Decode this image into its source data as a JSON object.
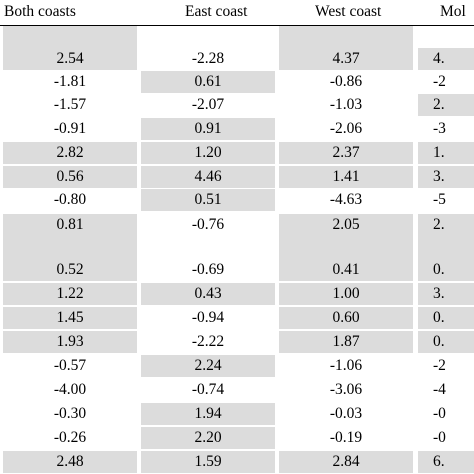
{
  "columns": [
    "Both coasts",
    "East coast",
    "West coast",
    "Mol"
  ],
  "colors": {
    "shade": "#dcdcdc",
    "text": "#000000"
  },
  "rows": [
    {
      "values": [
        "2.54",
        "-2.28",
        "4.37",
        "4."
      ],
      "shaded": [
        true,
        false,
        true,
        true
      ]
    },
    {
      "values": [
        "-1.81",
        "0.61",
        "-0.86",
        "-2"
      ],
      "shaded": [
        false,
        true,
        false,
        false
      ]
    },
    {
      "values": [
        "-1.57",
        "-2.07",
        "-1.03",
        "2."
      ],
      "shaded": [
        false,
        false,
        false,
        true
      ]
    },
    {
      "values": [
        "-0.91",
        "0.91",
        "-2.06",
        "-3"
      ],
      "shaded": [
        false,
        true,
        false,
        false
      ]
    },
    {
      "values": [
        "2.82",
        "1.20",
        "2.37",
        "1."
      ],
      "shaded": [
        true,
        true,
        true,
        true
      ]
    },
    {
      "values": [
        "0.56",
        "4.46",
        "1.41",
        "3."
      ],
      "shaded": [
        true,
        true,
        true,
        true
      ]
    },
    {
      "values": [
        "-0.80",
        "0.51",
        "-4.63",
        "-5"
      ],
      "shaded": [
        false,
        true,
        false,
        false
      ]
    },
    {
      "values": [
        "0.81",
        "-0.76",
        "2.05",
        "2."
      ],
      "shaded": [
        true,
        false,
        true,
        true
      ]
    },
    {
      "values": [
        "0.52",
        "-0.69",
        "0.41",
        "0."
      ],
      "shaded": [
        true,
        false,
        true,
        true
      ]
    },
    {
      "values": [
        "1.22",
        "0.43",
        "1.00",
        "3."
      ],
      "shaded": [
        true,
        true,
        true,
        true
      ]
    },
    {
      "values": [
        "1.45",
        "-0.94",
        "0.60",
        "0."
      ],
      "shaded": [
        true,
        false,
        true,
        true
      ]
    },
    {
      "values": [
        "1.93",
        "-2.22",
        "1.87",
        "0."
      ],
      "shaded": [
        true,
        false,
        true,
        true
      ]
    },
    {
      "values": [
        "-0.57",
        "2.24",
        "-1.06",
        "-2"
      ],
      "shaded": [
        false,
        true,
        false,
        false
      ]
    },
    {
      "values": [
        "-4.00",
        "-0.74",
        "-3.06",
        "-4"
      ],
      "shaded": [
        false,
        false,
        false,
        false
      ]
    },
    {
      "values": [
        "-0.30",
        "1.94",
        "-0.03",
        "-0"
      ],
      "shaded": [
        false,
        true,
        false,
        false
      ]
    },
    {
      "values": [
        "-0.26",
        "2.20",
        "-0.19",
        "-0"
      ],
      "shaded": [
        false,
        true,
        false,
        false
      ]
    },
    {
      "values": [
        "2.48",
        "1.59",
        "2.84",
        "6."
      ],
      "shaded": [
        true,
        true,
        true,
        true
      ]
    }
  ]
}
